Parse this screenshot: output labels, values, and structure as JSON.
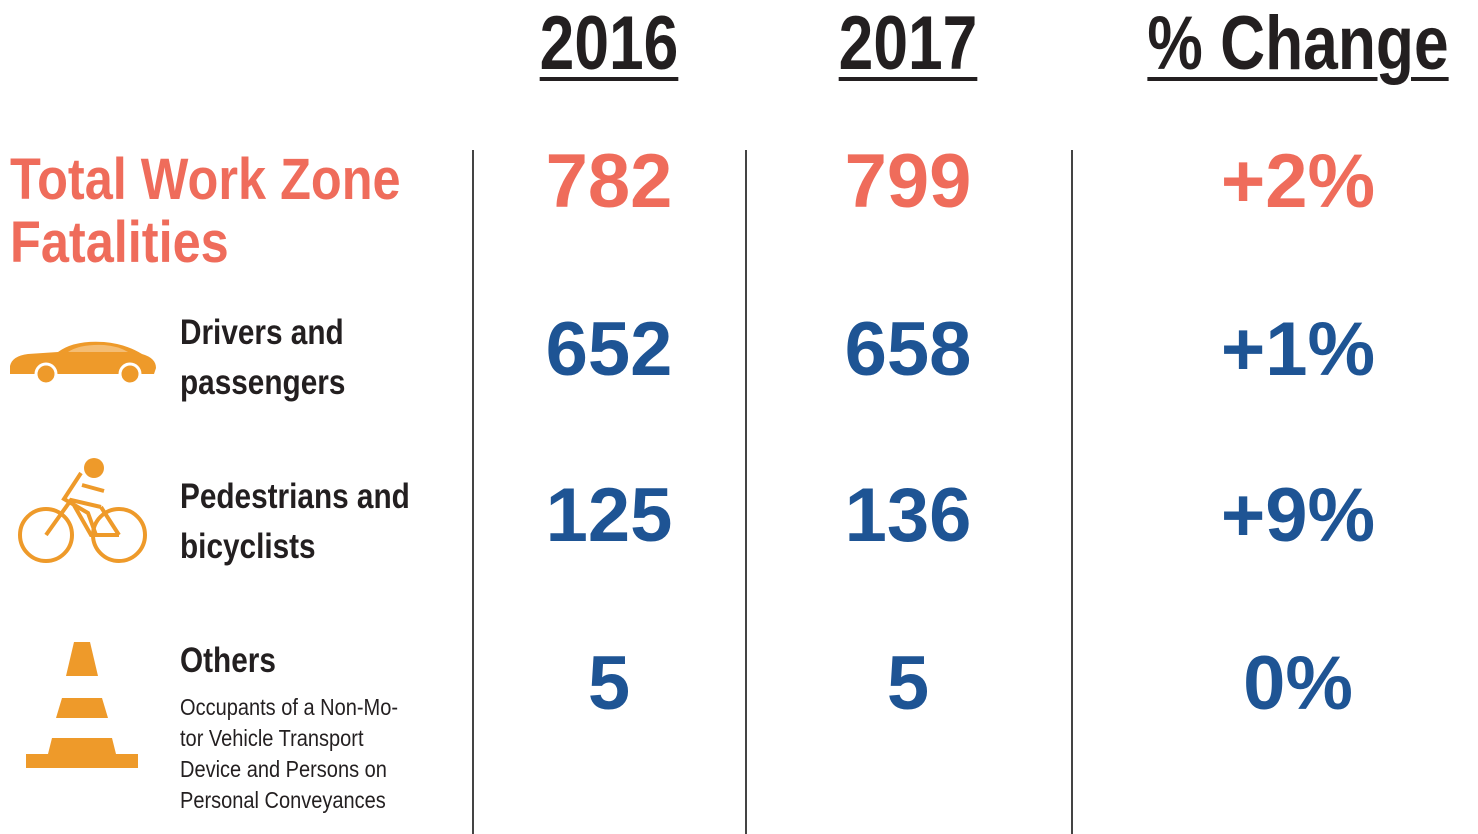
{
  "header": {
    "columns": [
      "2016",
      "2017",
      "% Change"
    ]
  },
  "total": {
    "label": [
      "Total Work Zone",
      "Fatalities"
    ],
    "values": [
      782,
      799,
      "+2%"
    ]
  },
  "rows": [
    {
      "label": [
        "Drivers and",
        "passengers"
      ],
      "values": [
        652,
        658,
        "+1%"
      ]
    },
    {
      "label": [
        "Pedestrians and",
        "bicyclists"
      ],
      "values": [
        125,
        136,
        "+9%"
      ]
    },
    {
      "label": [
        "Others"
      ],
      "description": [
        "Occupants of a Non-Mo-",
        "tor Vehicle Transport",
        "Device and Persons on",
        "Personal Conveyances"
      ],
      "values": [
        5,
        5,
        "0%"
      ]
    }
  ]
}
